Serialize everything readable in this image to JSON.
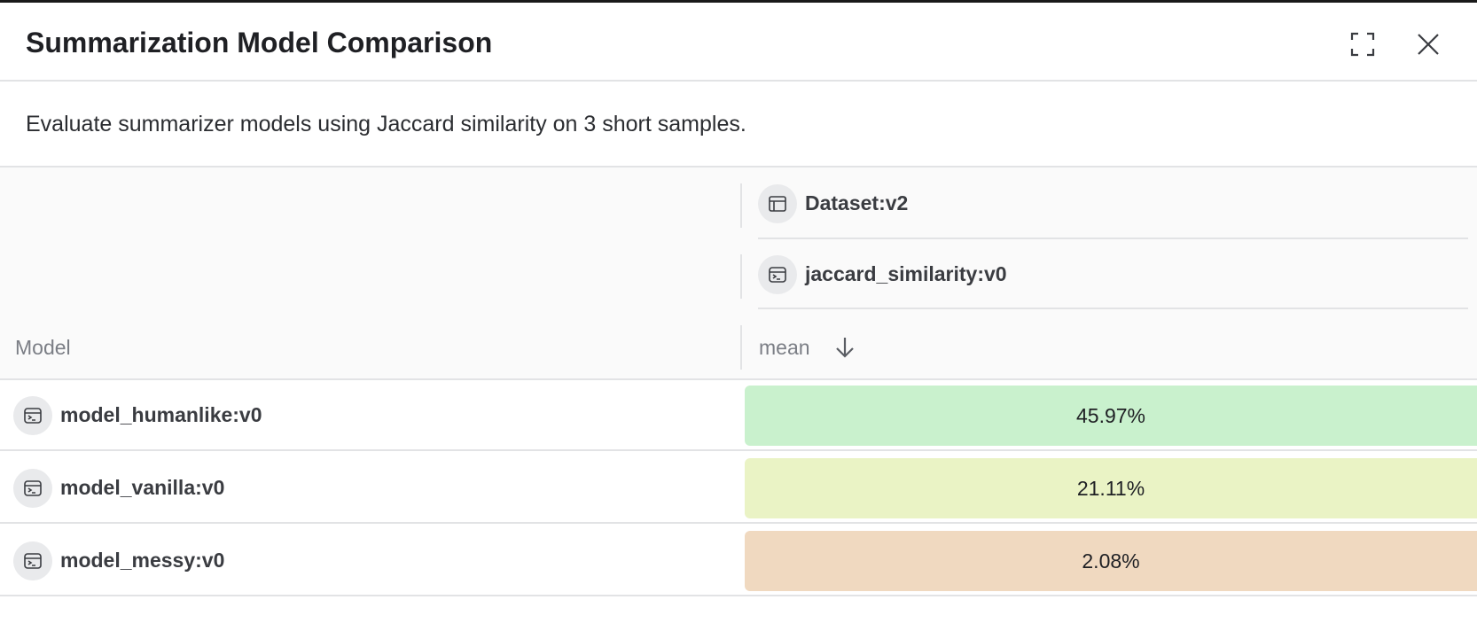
{
  "header": {
    "title": "Summarization Model Comparison",
    "expand_icon": "expand-icon",
    "close_icon": "close-icon"
  },
  "description": "Evaluate summarizer models using Jaccard similarity on 3 short samples.",
  "table": {
    "dataset_label": "Dataset:v2",
    "scorer_label": "jaccard_similarity:v0",
    "model_header": "Model",
    "metric_header": "mean",
    "sort_direction": "descending",
    "rows": [
      {
        "model": "model_humanlike:v0",
        "value": "45.97%",
        "color": "#c9f1cd"
      },
      {
        "model": "model_vanilla:v0",
        "value": "21.11%",
        "color": "#eaf3c5"
      },
      {
        "model": "model_messy:v0",
        "value": "2.08%",
        "color": "#f0d9c0"
      }
    ]
  }
}
